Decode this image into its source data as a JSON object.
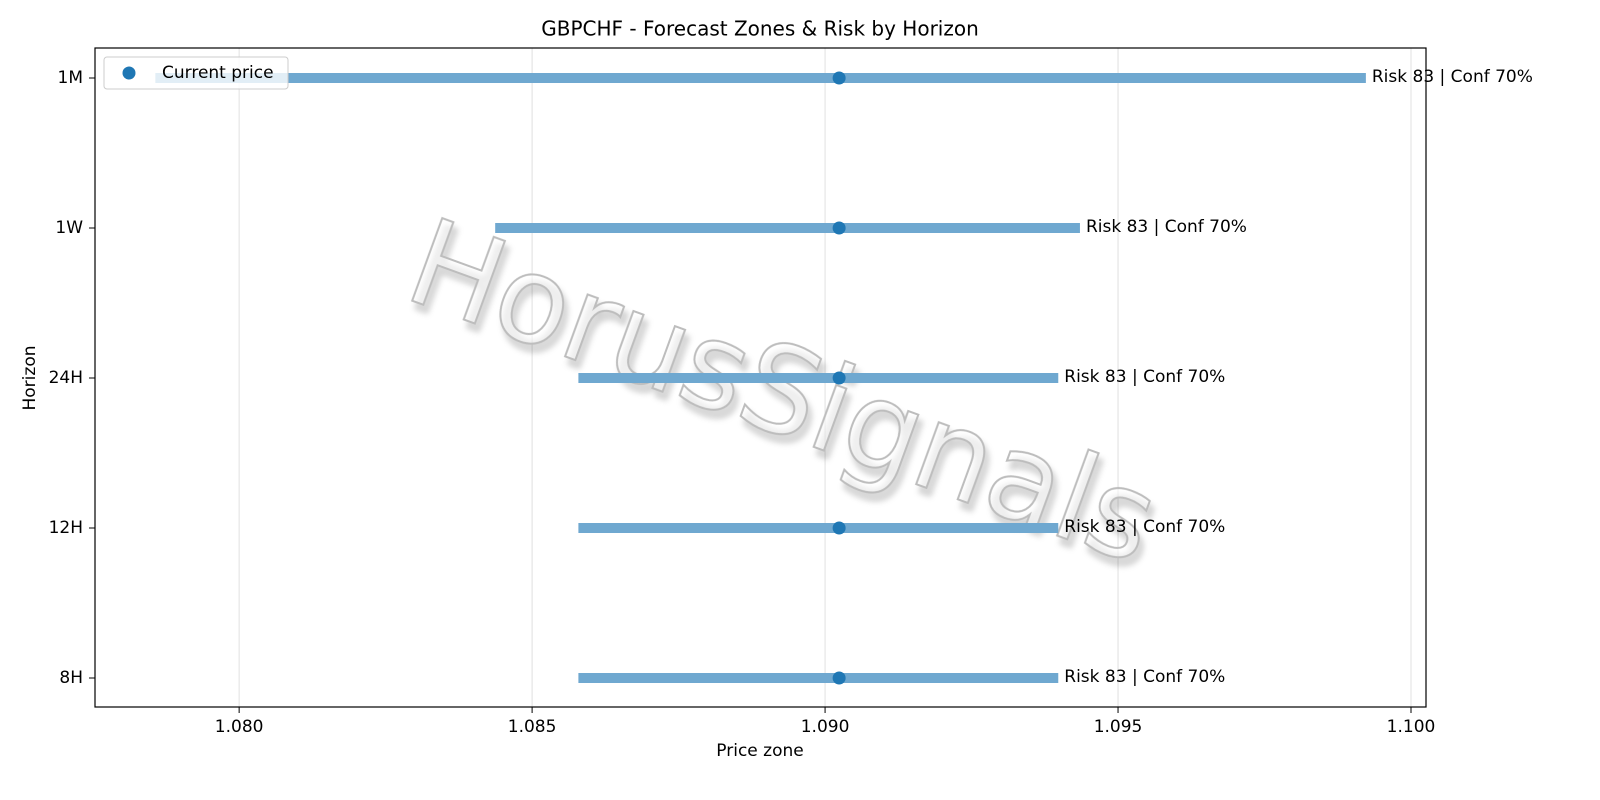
{
  "chart_data": {
    "type": "range",
    "title": "GBPCHF - Forecast Zones & Risk by Horizon",
    "xlabel": "Price zone",
    "ylabel": "Horizon",
    "watermark": "HorusSignals",
    "categories": [
      "1M",
      "1W",
      "24H",
      "12H",
      "8H"
    ],
    "ranges": {
      "color": "#6fa8d0",
      "low": [
        1.07857,
        1.08437,
        1.08579,
        1.08579,
        1.08579
      ],
      "high": [
        1.09923,
        1.09435,
        1.09398,
        1.09398,
        1.09398
      ]
    },
    "series": [
      {
        "name": "Current price",
        "color": "#1f77b4",
        "values": [
          1.09024,
          1.09024,
          1.09024,
          1.09024,
          1.09024
        ]
      }
    ],
    "annotations": [
      "Risk 83 | Conf 70%",
      "Risk 83 | Conf 70%",
      "Risk 83 | Conf 70%",
      "Risk 83 | Conf 70%",
      "Risk 83 | Conf 70%"
    ],
    "xlim": [
      1.07754,
      1.100256
    ],
    "xticks": [
      {
        "value": 1.08,
        "label": "1.080"
      },
      1.085,
      {
        "value": 1.09,
        "label": "1.090"
      },
      1.095,
      {
        "value": 1.1,
        "label": "1.100"
      }
    ],
    "grid": true,
    "legend": "upper-left"
  }
}
